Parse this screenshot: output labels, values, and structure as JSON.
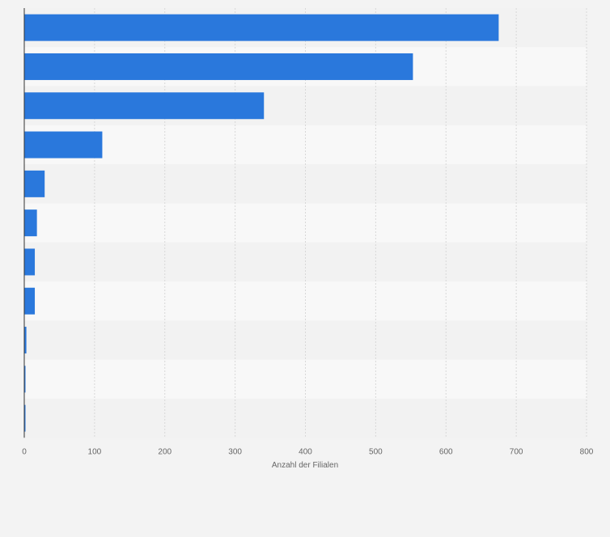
{
  "chart_data": {
    "type": "bar",
    "orientation": "horizontal",
    "xlabel": "Anzahl der Filialen",
    "xlim": [
      0,
      800
    ],
    "xticks": [
      "0",
      "100",
      "200",
      "300",
      "400",
      "500",
      "600",
      "700",
      "800"
    ],
    "categories": [
      "",
      "",
      "",
      "",
      "",
      "",
      "",
      "",
      "",
      "",
      ""
    ],
    "values": [
      675,
      553,
      341,
      111,
      29,
      18,
      15,
      15,
      3,
      1,
      1
    ],
    "grid": true,
    "legend": "none",
    "colors": {
      "bar": "#2a78dc",
      "band_dark": "#f2f2f2",
      "band_light": "#f8f8f8",
      "background": "#f3f3f3",
      "grid": "#d8d8d8",
      "axis": "#333333",
      "tick_text": "#666666"
    }
  }
}
